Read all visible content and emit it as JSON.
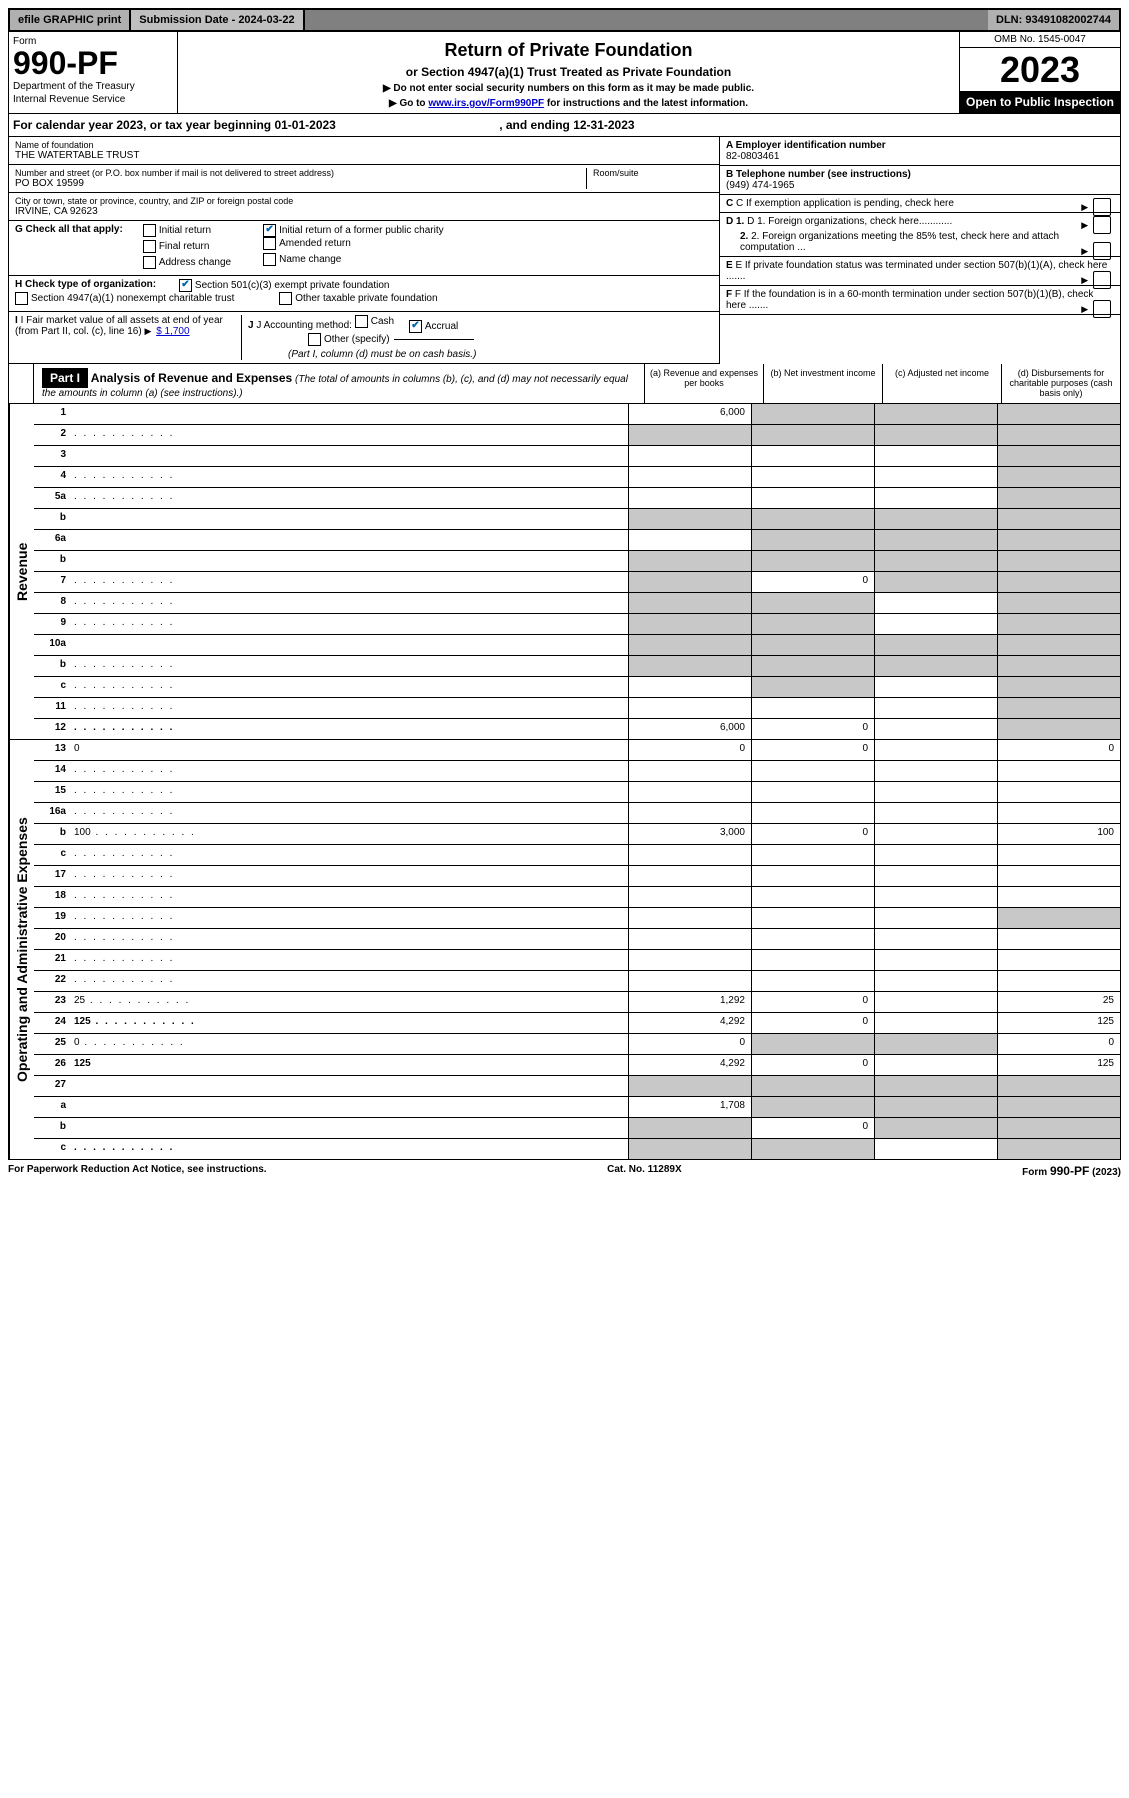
{
  "top": {
    "efile": "efile GRAPHIC print",
    "subdate_label": "Submission Date - 2024-03-22",
    "dln": "DLN: 93491082002744"
  },
  "header": {
    "form_word": "Form",
    "form_number": "990-PF",
    "dept1": "Department of the Treasury",
    "dept2": "Internal Revenue Service",
    "title": "Return of Private Foundation",
    "subtitle": "or Section 4947(a)(1) Trust Treated as Private Foundation",
    "note1": "▶ Do not enter social security numbers on this form as it may be made public.",
    "note2_pre": "▶ Go to ",
    "note2_link": "www.irs.gov/Form990PF",
    "note2_post": " for instructions and the latest information.",
    "omb": "OMB No. 1545-0047",
    "year": "2023",
    "open": "Open to Public Inspection"
  },
  "cal_year": {
    "prefix": "For calendar year 2023, or tax year beginning ",
    "begin": "01-01-2023",
    "mid": " , and ending ",
    "end": "12-31-2023"
  },
  "info": {
    "name_label": "Name of foundation",
    "name": "THE WATERTABLE TRUST",
    "address_label": "Number and street (or P.O. box number if mail is not delivered to street address)",
    "address": "PO BOX 19599",
    "room_label": "Room/suite",
    "city_label": "City or town, state or province, country, and ZIP or foreign postal code",
    "city": "IRVINE, CA  92623",
    "a_label": "A Employer identification number",
    "a_value": "82-0803461",
    "b_label": "B Telephone number (see instructions)",
    "b_value": "(949) 474-1965",
    "c_label": "C If exemption application is pending, check here",
    "d1_label": "D 1. Foreign organizations, check here............",
    "d2_label": "2. Foreign organizations meeting the 85% test, check here and attach computation ...",
    "e_label": "E If private foundation status was terminated under section 507(b)(1)(A), check here .......",
    "f_label": "F If the foundation is in a 60-month termination under section 507(b)(1)(B), check here .......",
    "g_label": "G Check all that apply:",
    "g_opts": {
      "initial": "Initial return",
      "initial_former": "Initial return of a former public charity",
      "final": "Final return",
      "amended": "Amended return",
      "address": "Address change",
      "name": "Name change"
    },
    "h_label": "H Check type of organization:",
    "h_opts": {
      "sec501": "Section 501(c)(3) exempt private foundation",
      "sec4947": "Section 4947(a)(1) nonexempt charitable trust",
      "other_tax": "Other taxable private foundation"
    },
    "i_label": "I Fair market value of all assets at end of year (from Part II, col. (c), line 16)",
    "i_value": "$  1,700",
    "j_label": "J Accounting method:",
    "j_cash": "Cash",
    "j_accrual": "Accrual",
    "j_other": "Other (specify)",
    "j_note": "(Part I, column (d) must be on cash basis.)"
  },
  "part1": {
    "badge": "Part I",
    "title": "Analysis of Revenue and Expenses",
    "title_note": " (The total of amounts in columns (b), (c), and (d) may not necessarily equal the amounts in column (a) (see instructions).)",
    "col_a": "(a) Revenue and expenses per books",
    "col_b": "(b) Net investment income",
    "col_c": "(c) Adjusted net income",
    "col_d": "(d) Disbursements for charitable purposes (cash basis only)"
  },
  "sections": {
    "revenue": "Revenue",
    "expenses": "Operating and Administrative Expenses"
  },
  "lines": [
    {
      "n": "1",
      "d": "",
      "a": "6,000",
      "b": "",
      "c": "",
      "ga": false,
      "gb": true,
      "gc": true,
      "gd": true
    },
    {
      "n": "2",
      "d": "",
      "a": "",
      "b": "",
      "c": "",
      "ga": true,
      "gb": true,
      "gc": true,
      "gd": true,
      "nobold": true,
      "dots": true
    },
    {
      "n": "3",
      "d": "",
      "a": "",
      "b": "",
      "c": "",
      "ga": false,
      "gb": false,
      "gc": false,
      "gd": true
    },
    {
      "n": "4",
      "d": "",
      "a": "",
      "b": "",
      "c": "",
      "ga": false,
      "gb": false,
      "gc": false,
      "gd": true,
      "dots": true
    },
    {
      "n": "5a",
      "d": "",
      "a": "",
      "b": "",
      "c": "",
      "ga": false,
      "gb": false,
      "gc": false,
      "gd": true,
      "dots": true
    },
    {
      "n": "b",
      "d": "",
      "a": "",
      "b": "",
      "c": "",
      "ga": true,
      "gb": true,
      "gc": true,
      "gd": true,
      "inset": true
    },
    {
      "n": "6a",
      "d": "",
      "a": "",
      "b": "",
      "c": "",
      "ga": false,
      "gb": true,
      "gc": true,
      "gd": true
    },
    {
      "n": "b",
      "d": "",
      "a": "",
      "b": "",
      "c": "",
      "ga": true,
      "gb": true,
      "gc": true,
      "gd": true,
      "inset": true
    },
    {
      "n": "7",
      "d": "",
      "a": "",
      "b": "0",
      "c": "",
      "ga": true,
      "gb": false,
      "gc": true,
      "gd": true,
      "dots": true
    },
    {
      "n": "8",
      "d": "",
      "a": "",
      "b": "",
      "c": "",
      "ga": true,
      "gb": true,
      "gc": false,
      "gd": true,
      "dots": true
    },
    {
      "n": "9",
      "d": "",
      "a": "",
      "b": "",
      "c": "",
      "ga": true,
      "gb": true,
      "gc": false,
      "gd": true,
      "dots": true
    },
    {
      "n": "10a",
      "d": "",
      "a": "",
      "b": "",
      "c": "",
      "ga": true,
      "gb": true,
      "gc": true,
      "gd": true,
      "inset": true
    },
    {
      "n": "b",
      "d": "",
      "a": "",
      "b": "",
      "c": "",
      "ga": true,
      "gb": true,
      "gc": true,
      "gd": true,
      "dots": true,
      "inset": true
    },
    {
      "n": "c",
      "d": "",
      "a": "",
      "b": "",
      "c": "",
      "ga": false,
      "gb": true,
      "gc": false,
      "gd": true,
      "dots": true
    },
    {
      "n": "11",
      "d": "",
      "a": "",
      "b": "",
      "c": "",
      "ga": false,
      "gb": false,
      "gc": false,
      "gd": true,
      "dots": true
    },
    {
      "n": "12",
      "d": "",
      "a": "6,000",
      "b": "0",
      "c": "",
      "ga": false,
      "gb": false,
      "gc": false,
      "gd": true,
      "bold": true,
      "dots": true
    }
  ],
  "exp_lines": [
    {
      "n": "13",
      "d": "0",
      "a": "0",
      "b": "0",
      "c": "",
      "ga": false,
      "gb": false,
      "gc": false,
      "gd": false
    },
    {
      "n": "14",
      "d": "",
      "a": "",
      "b": "",
      "c": "",
      "ga": false,
      "gb": false,
      "gc": false,
      "gd": false,
      "dots": true
    },
    {
      "n": "15",
      "d": "",
      "a": "",
      "b": "",
      "c": "",
      "ga": false,
      "gb": false,
      "gc": false,
      "gd": false,
      "dots": true
    },
    {
      "n": "16a",
      "d": "",
      "a": "",
      "b": "",
      "c": "",
      "ga": false,
      "gb": false,
      "gc": false,
      "gd": false,
      "dots": true
    },
    {
      "n": "b",
      "d": "100",
      "a": "3,000",
      "b": "0",
      "c": "",
      "ga": false,
      "gb": false,
      "gc": false,
      "gd": false,
      "dots": true
    },
    {
      "n": "c",
      "d": "",
      "a": "",
      "b": "",
      "c": "",
      "ga": false,
      "gb": false,
      "gc": false,
      "gd": false,
      "dots": true
    },
    {
      "n": "17",
      "d": "",
      "a": "",
      "b": "",
      "c": "",
      "ga": false,
      "gb": false,
      "gc": false,
      "gd": false,
      "dots": true
    },
    {
      "n": "18",
      "d": "",
      "a": "",
      "b": "",
      "c": "",
      "ga": false,
      "gb": false,
      "gc": false,
      "gd": false,
      "dots": true
    },
    {
      "n": "19",
      "d": "",
      "a": "",
      "b": "",
      "c": "",
      "ga": false,
      "gb": false,
      "gc": false,
      "gd": true,
      "dots": true
    },
    {
      "n": "20",
      "d": "",
      "a": "",
      "b": "",
      "c": "",
      "ga": false,
      "gb": false,
      "gc": false,
      "gd": false,
      "dots": true
    },
    {
      "n": "21",
      "d": "",
      "a": "",
      "b": "",
      "c": "",
      "ga": false,
      "gb": false,
      "gc": false,
      "gd": false,
      "dots": true
    },
    {
      "n": "22",
      "d": "",
      "a": "",
      "b": "",
      "c": "",
      "ga": false,
      "gb": false,
      "gc": false,
      "gd": false,
      "dots": true
    },
    {
      "n": "23",
      "d": "25",
      "a": "1,292",
      "b": "0",
      "c": "",
      "ga": false,
      "gb": false,
      "gc": false,
      "gd": false,
      "dots": true
    },
    {
      "n": "24",
      "d": "125",
      "a": "4,292",
      "b": "0",
      "c": "",
      "ga": false,
      "gb": false,
      "gc": false,
      "gd": false,
      "bold": true,
      "dots": true
    },
    {
      "n": "25",
      "d": "0",
      "a": "0",
      "b": "",
      "c": "",
      "ga": false,
      "gb": true,
      "gc": true,
      "gd": false,
      "dots": true
    },
    {
      "n": "26",
      "d": "125",
      "a": "4,292",
      "b": "0",
      "c": "",
      "ga": false,
      "gb": false,
      "gc": false,
      "gd": false,
      "bold": true
    },
    {
      "n": "27",
      "d": "",
      "a": "",
      "b": "",
      "c": "",
      "ga": true,
      "gb": true,
      "gc": true,
      "gd": true
    },
    {
      "n": "a",
      "d": "",
      "a": "1,708",
      "b": "",
      "c": "",
      "ga": false,
      "gb": true,
      "gc": true,
      "gd": true,
      "bold": true
    },
    {
      "n": "b",
      "d": "",
      "a": "",
      "b": "0",
      "c": "",
      "ga": true,
      "gb": false,
      "gc": true,
      "gd": true,
      "bold": true
    },
    {
      "n": "c",
      "d": "",
      "a": "",
      "b": "",
      "c": "",
      "ga": true,
      "gb": true,
      "gc": false,
      "gd": true,
      "bold": true,
      "dots": true
    }
  ],
  "footer": {
    "left": "For Paperwork Reduction Act Notice, see instructions.",
    "mid": "Cat. No. 11289X",
    "right": "Form 990-PF (2023)"
  },
  "colors": {
    "grey_bg": "#c8c8c8",
    "link": "#0000cc",
    "check": "#0066aa"
  }
}
